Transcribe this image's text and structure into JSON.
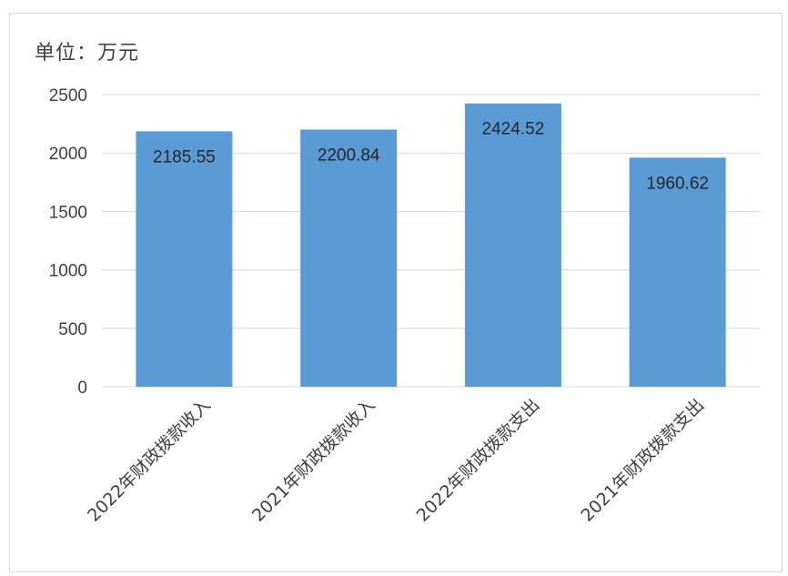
{
  "chart_data": {
    "type": "bar",
    "unit_label": "单位：万元",
    "categories": [
      "2022年财政拨款收入",
      "2021年财政拨款收入",
      "2022年财政拨款支出",
      "2021年财政拨款支出"
    ],
    "values": [
      2185.55,
      2200.84,
      2424.52,
      1960.62
    ],
    "value_labels": [
      "2185.55",
      "2200.84",
      "2424.52",
      "1960.62"
    ],
    "y_ticks": [
      0,
      500,
      1000,
      1500,
      2000,
      2500
    ],
    "ylim": [
      0,
      2500
    ],
    "grid": true,
    "legend": "none",
    "bar_color": "#5b9bd5",
    "grid_color": "#d9d9d9"
  }
}
